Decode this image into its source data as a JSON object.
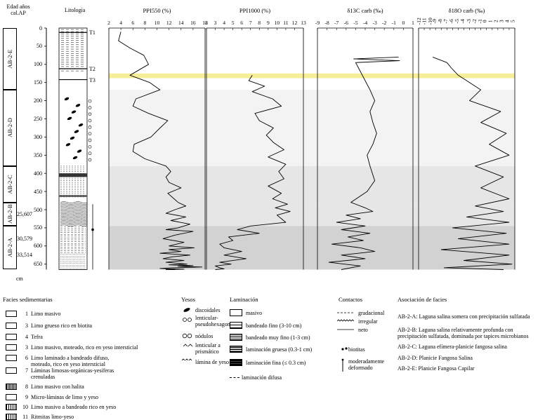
{
  "header": {
    "age_label_1": "Edad años",
    "age_label_2": "cal.AP",
    "litho_label": "Litología",
    "depth_unit": "cm"
  },
  "units": [
    {
      "label": "AB-2-E",
      "from": 0,
      "to": 170
    },
    {
      "label": "AB-2-D",
      "from": 170,
      "to": 380
    },
    {
      "label": "AB-2-C",
      "from": 380,
      "to": 480
    },
    {
      "label": "AB-2-B",
      "from": 480,
      "to": 545
    },
    {
      "label": "AB-2-A",
      "from": 545,
      "to": 665
    }
  ],
  "ages": [
    {
      "label": "25,607",
      "depth": 512
    },
    {
      "label": "30,579",
      "depth": 580
    },
    {
      "label": "33,514",
      "depth": 625
    }
  ],
  "depth_ticks": [
    "0",
    "50",
    "100",
    "150",
    "200",
    "250",
    "300",
    "350",
    "400",
    "450",
    "500",
    "550",
    "600",
    "650"
  ],
  "tephra": [
    "T1",
    "T2",
    "T3"
  ],
  "zone_colors": {
    "upper": "#f3f3f3",
    "middle": "#e6e6e6",
    "lower": "#d2d2d2",
    "band": "#f6ee98"
  },
  "chart_data": [
    {
      "type": "line",
      "title": "PPI550 (%)",
      "xlim": [
        2,
        18
      ],
      "xticks": [
        "2",
        "4",
        "6",
        "8",
        "10",
        "12",
        "14",
        "16",
        "18"
      ],
      "ylim": [
        0,
        665
      ],
      "x": [
        4.0,
        3.6,
        5.5,
        7.8,
        8.6,
        5.5,
        8.8,
        10.5,
        6.5,
        6.0,
        8.6,
        11.8,
        10.5,
        9.0,
        6.2,
        6.0,
        8.0,
        11.5,
        12.3,
        11.5,
        12.0,
        14.0,
        11.8,
        12.5,
        13.5,
        14.8,
        13.0,
        11.5,
        14.8,
        12.3,
        15.5,
        13.5,
        11.5,
        16.0,
        13.0,
        11.0,
        14.5,
        12.0,
        16.2,
        12.0,
        14.0,
        10.5,
        15.5,
        12.5,
        11.0,
        14.5,
        11.5,
        15.0,
        12.0,
        16.0,
        13.5,
        17.5,
        12.5,
        10.5,
        14.5,
        11.5,
        13.0
      ],
      "y": [
        10,
        35,
        55,
        75,
        100,
        130,
        150,
        170,
        195,
        215,
        235,
        255,
        275,
        300,
        320,
        340,
        360,
        380,
        395,
        410,
        425,
        440,
        455,
        465,
        480,
        490,
        500,
        510,
        520,
        530,
        540,
        550,
        555,
        560,
        570,
        580,
        590,
        600,
        605,
        610,
        615,
        620,
        625,
        630,
        635,
        640,
        645,
        650,
        652,
        654,
        656,
        658,
        660,
        662,
        664,
        665,
        665
      ]
    },
    {
      "type": "line",
      "title": "PPI1000 (%)",
      "xlim": [
        2,
        13
      ],
      "xticks": [
        "2",
        "3",
        "4",
        "5",
        "6",
        "7",
        "8",
        "9",
        "10",
        "11",
        "12",
        "13"
      ],
      "ylim": [
        0,
        665
      ],
      "x": [
        7.2,
        6.8,
        8.6,
        7.2,
        9.5,
        10.5,
        7.5,
        8.0,
        9.6,
        8.8,
        9.6,
        10.8,
        9.0,
        11.0,
        10.2,
        10.8,
        9.0,
        10.5,
        9.5,
        11.2,
        9.8,
        11.5,
        10.0,
        10.5,
        11.0,
        7.0,
        5.5,
        8.0,
        4.5,
        5.0,
        3.5,
        4.0,
        6.0,
        4.0,
        6.5,
        3.5,
        4.8,
        3.0,
        3.5,
        4.0,
        3.0
      ],
      "y": [
        130,
        145,
        160,
        175,
        195,
        215,
        235,
        255,
        275,
        295,
        315,
        335,
        355,
        375,
        395,
        415,
        435,
        455,
        470,
        485,
        495,
        505,
        515,
        525,
        535,
        545,
        555,
        565,
        575,
        585,
        595,
        605,
        615,
        625,
        635,
        645,
        650,
        655,
        660,
        663,
        665
      ]
    },
    {
      "type": "line",
      "title": "δ13C carb (‰)",
      "xlim": [
        -9,
        1
      ],
      "xticks": [
        "-9",
        "-8",
        "-7",
        "-6",
        "-5",
        "-4",
        "-3",
        "-2",
        "-1",
        "0",
        "1"
      ],
      "ylim": [
        0,
        665
      ],
      "x": [
        -0.5,
        -5.2,
        -0.4,
        -5.0,
        -3.5,
        -3.0,
        -3.5,
        -3.2,
        -2.8,
        -3.2,
        -3.8,
        -3.5,
        -3.0,
        -3.8,
        -5.5,
        -4.0,
        -3.2,
        -6.0,
        -4.5,
        -7.0,
        -4.0,
        -6.5,
        -3.5,
        -5.8,
        -4.2,
        -7.5,
        -4.5,
        -3.0,
        -6.5,
        -4.0,
        -7.8,
        -4.5,
        -6.5
      ],
      "y": [
        80,
        85,
        90,
        95,
        170,
        200,
        230,
        260,
        290,
        320,
        350,
        380,
        420,
        450,
        480,
        495,
        505,
        515,
        525,
        535,
        545,
        555,
        565,
        575,
        585,
        595,
        605,
        615,
        625,
        635,
        645,
        655,
        665
      ]
    },
    {
      "type": "line",
      "title": "δ18O carb (‰)",
      "xlim": [
        -12,
        5
      ],
      "xticks": [
        "-12",
        "-11",
        "-10",
        "-9",
        "-8",
        "-7",
        "-6",
        "-5",
        "-4",
        "-3",
        "-2",
        "-1",
        "0",
        "1",
        "2",
        "3",
        "4",
        "5"
      ],
      "ylim": [
        0,
        665
      ],
      "x": [
        -9.5,
        -7.0,
        -6.2,
        -5.0,
        -1.0,
        -3.0,
        2.5,
        -1.0,
        3.5,
        0.5,
        4.0,
        -2.0,
        3.0,
        -1.0,
        4.0,
        -2.0,
        3.0,
        -3.5,
        4.0,
        -6.0,
        3.5,
        -5.0,
        4.0,
        -8.0,
        4.0,
        -4.0,
        4.5,
        -7.5,
        3.0
      ],
      "y": [
        80,
        95,
        110,
        130,
        170,
        200,
        230,
        260,
        290,
        320,
        350,
        380,
        410,
        440,
        470,
        490,
        505,
        520,
        535,
        550,
        565,
        580,
        595,
        610,
        625,
        640,
        650,
        660,
        665
      ]
    }
  ],
  "legend": {
    "facies_title": "Facies sedimentarias",
    "facies": [
      {
        "num": "1",
        "label": "Limo masivo"
      },
      {
        "num": "3",
        "label": "Limo grueso rico en biotita"
      },
      {
        "num": "4",
        "label": "Tefra"
      },
      {
        "num": "3",
        "label": "Limo masivo, moteado, rico en yeso intersticial"
      },
      {
        "num": "6",
        "label": "Limo laminado a bandeado difuso,"
      },
      {
        "num": "",
        "label": "moteado, rico en yeso intersticial"
      },
      {
        "num": "7",
        "label": "Láminas limosas-orgánicas-yesíferas"
      },
      {
        "num": "",
        "label": "crenuladas"
      },
      {
        "num": "8",
        "label": "Limo masivo con halita"
      },
      {
        "num": "9",
        "label": "Micro-láminas de limo y yeso"
      },
      {
        "num": "10",
        "label": "Limo masivo a bandeado rico en yeso"
      },
      {
        "num": "11",
        "label": "Ritmitas limo-yeso"
      }
    ],
    "yesos_title": "Yesos",
    "yesos": [
      "discoidales",
      "lenticular-",
      "pseudohexagonal",
      "nódulos",
      "lenticular a",
      "prismático",
      "lámina de yeso"
    ],
    "lam_title": "Laminación",
    "lam": [
      "masivo",
      "bandeado fino (3-10 cm)",
      "bandeado muy fino (1-3 cm)",
      "laminación gruesa (0.3-1 cm)",
      "laminación fina (≤ 0.3 cm)",
      "laminación difusa"
    ],
    "contact_title": "Contactos",
    "contacts": [
      "gradacional",
      "irregular",
      "neto"
    ],
    "biot": "biotitas",
    "deform_1": "moderadamente",
    "deform_2": "deformado",
    "assoc_title": "Asociación de facies",
    "assoc": [
      "AB-2-A: Laguna salina somera con precipitación sulfatada",
      "AB-2-B: Laguna salina relativamente profunda con",
      "precipitación sulfatada, dominada por tapices microbianos",
      "AB-2-C: Laguna efímera-planicie fangosa salina",
      "AB-2-D: Planicie Fangosa Salina",
      "AB-2-E: Planicie Fangosa Capilar"
    ]
  }
}
